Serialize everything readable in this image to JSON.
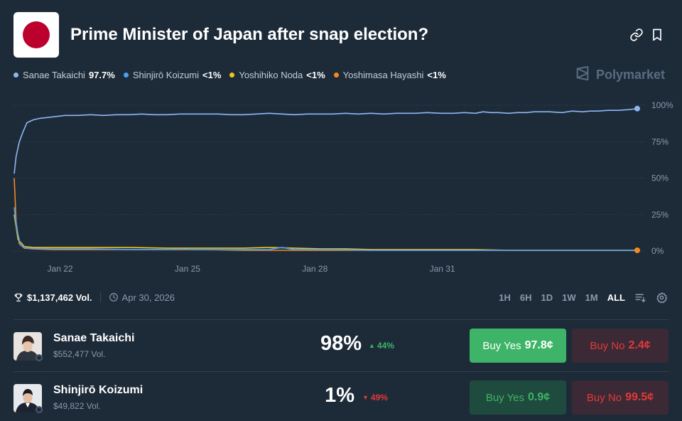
{
  "header": {
    "title": "Prime Minister of Japan after snap election?",
    "flag": {
      "icon": "japan-flag-icon",
      "field": "#ffffff",
      "sun": "#bc002d"
    },
    "actions": [
      {
        "name": "link-icon"
      },
      {
        "name": "bookmark-icon"
      }
    ]
  },
  "legend": [
    {
      "name": "Sanae Takaichi",
      "value": "97.7%",
      "color": "#8fb6f2"
    },
    {
      "name": "Shinjirō Koizumi",
      "value": "<1%",
      "color": "#4a9ff5"
    },
    {
      "name": "Yoshihiko Noda",
      "value": "<1%",
      "color": "#f0c419"
    },
    {
      "name": "Yoshimasa Hayashi",
      "value": "<1%",
      "color": "#f58a1f"
    }
  ],
  "brand": {
    "name": "Polymarket",
    "icon": "polymarket-logo-icon",
    "color": "#5a6b80"
  },
  "chart_data": {
    "type": "line",
    "x_tick_labels": [
      "Jan 22",
      "Jan 25",
      "Jan 28",
      "Jan 31"
    ],
    "y_tick_labels": [
      "100%",
      "75%",
      "50%",
      "25%",
      "0%"
    ],
    "ylim": [
      0,
      100
    ],
    "grid": true,
    "series": [
      {
        "name": "Sanae Takaichi",
        "color": "#8fb6f2",
        "x": [
          0,
          0.15,
          0.4,
          0.7,
          1,
          1.5,
          2,
          3,
          4,
          5,
          6,
          7,
          8,
          9,
          10,
          11,
          12,
          13,
          14,
          15,
          16,
          17,
          18,
          19,
          20,
          21,
          22,
          23,
          24,
          25,
          26,
          27,
          28,
          29,
          30,
          30.7,
          31.5,
          32.4,
          33.5,
          34.5,
          35.3,
          36.2,
          36.8,
          37.4,
          38,
          38.8,
          39.5,
          40.2,
          40.8,
          41.5,
          42,
          43,
          43.8,
          44.6,
          45.2,
          45.8,
          46.6,
          47.4,
          48.2,
          48.9
        ],
        "values": [
          53,
          65,
          75,
          82,
          88,
          90,
          91,
          92,
          93,
          93,
          93.5,
          93,
          93.5,
          93.5,
          94,
          93.5,
          93.5,
          94,
          94,
          94,
          94,
          93.5,
          93.5,
          94,
          94.5,
          94,
          93.5,
          94,
          94,
          94,
          94.5,
          94,
          94.5,
          94,
          94.5,
          94.5,
          94.5,
          95,
          94.5,
          94.5,
          95,
          94.5,
          95.5,
          95,
          95,
          94.5,
          95,
          95,
          95.5,
          95.5,
          95.5,
          95,
          96,
          95.5,
          96,
          96,
          96.5,
          96.5,
          97,
          97.7
        ]
      },
      {
        "name": "Shinjirō Koizumi",
        "color": "#4a9ff5",
        "x": [
          0,
          0.2,
          0.5,
          1,
          3,
          6,
          9,
          12,
          13,
          14,
          17,
          20,
          21,
          22,
          25,
          28,
          31,
          34,
          37,
          40,
          43,
          46,
          48.9
        ],
        "values": [
          30,
          15,
          4,
          2,
          1.5,
          1.5,
          1,
          1,
          1.5,
          1,
          1,
          1,
          2.5,
          1,
          1,
          0.5,
          0.5,
          0.5,
          0.5,
          0.5,
          0.5,
          0.5,
          0.5
        ]
      },
      {
        "name": "Yoshihiko Noda",
        "color": "#f0c419",
        "x": [
          0,
          0.3,
          0.8,
          1.5,
          3,
          6,
          9,
          12,
          15,
          18,
          20,
          22,
          24,
          26,
          28,
          30,
          33,
          36,
          39,
          42,
          45,
          48.9
        ],
        "values": [
          25,
          8,
          3,
          2.5,
          2.5,
          2.5,
          2.5,
          2,
          2,
          2,
          2.5,
          2,
          1.5,
          1.5,
          1,
          1,
          1,
          1,
          0.5,
          0.5,
          0.5,
          0.5
        ]
      },
      {
        "name": "Yoshimasa Hayashi",
        "color": "#f58a1f",
        "x": [
          0,
          0.15,
          0.4,
          0.8,
          1.5,
          3,
          6,
          9,
          12,
          15,
          18,
          21,
          24,
          27,
          30,
          33,
          36,
          39,
          42,
          45,
          48.9
        ],
        "values": [
          50,
          20,
          5,
          2,
          1.5,
          1,
          1,
          1,
          1,
          1,
          0.5,
          0.5,
          0.5,
          0.5,
          0.5,
          0.5,
          0.5,
          0.5,
          0.5,
          0.5,
          0.5
        ]
      }
    ]
  },
  "stats": {
    "trophy_icon": "trophy-icon",
    "volume": "$1,137,462 Vol.",
    "clock_icon": "clock-icon",
    "end_date": "Apr 30, 2026"
  },
  "ranges": [
    "1H",
    "6H",
    "1D",
    "1W",
    "1M",
    "ALL"
  ],
  "active_range": "ALL",
  "range_icons": [
    "filter-icon",
    "settings-icon"
  ],
  "outcomes": [
    {
      "name": "Sanae Takaichi",
      "volume": "$552,477 Vol.",
      "percent": "98%",
      "change": "44%",
      "change_dir": "up",
      "change_color": "#3db468",
      "yes_label": "Buy Yes",
      "yes_price": "97.8¢",
      "no_label": "Buy No",
      "no_price": "2.4¢"
    },
    {
      "name": "Shinjirō Koizumi",
      "volume": "$49,822 Vol.",
      "percent": "1%",
      "change": "49%",
      "change_dir": "down",
      "change_color": "#e23939",
      "yes_label": "Buy Yes",
      "yes_price": "0.9¢",
      "no_label": "Buy No",
      "no_price": "99.5¢"
    }
  ]
}
